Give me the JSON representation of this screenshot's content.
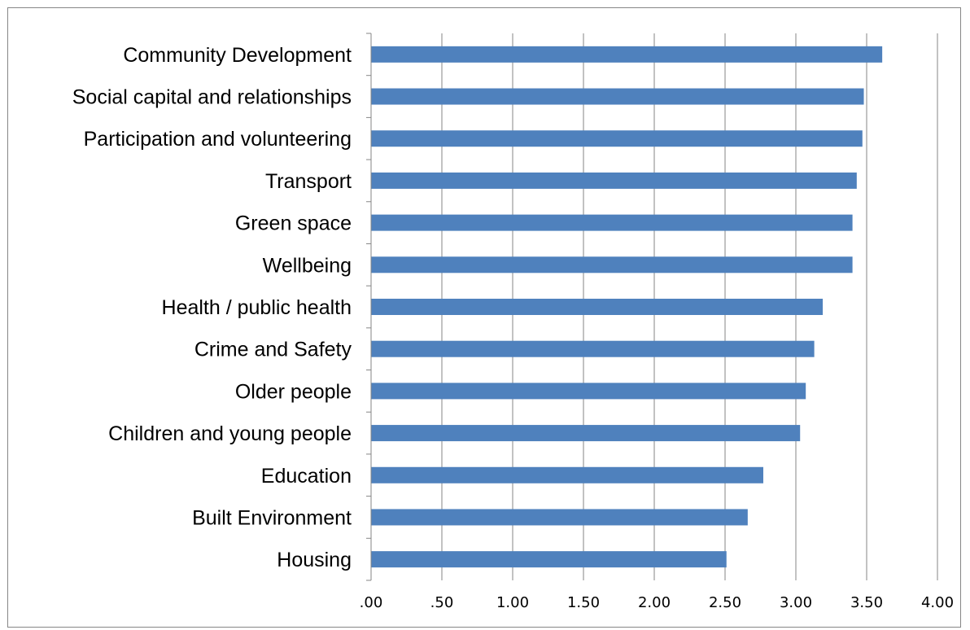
{
  "chart_data": {
    "type": "bar",
    "orientation": "horizontal",
    "categories": [
      "Community Development",
      "Social capital and relationships",
      "Participation and volunteering",
      "Transport",
      "Green space",
      "Wellbeing",
      "Health / public health",
      "Crime and Safety",
      "Older people",
      "Children and young people",
      "Education",
      "Built Environment",
      "Housing"
    ],
    "values": [
      3.61,
      3.48,
      3.47,
      3.43,
      3.4,
      3.4,
      3.19,
      3.13,
      3.07,
      3.03,
      2.77,
      2.66,
      2.51
    ],
    "xlim": [
      0,
      4
    ],
    "x_ticks": [
      0,
      0.5,
      1,
      1.5,
      2,
      2.5,
      3,
      3.5,
      4
    ],
    "x_tick_labels": [
      ".00",
      ".50",
      "1.00",
      "1.50",
      "2.00",
      "2.50",
      "3.00",
      "3.50",
      "4.00"
    ],
    "title": "",
    "xlabel": "",
    "ylabel": "",
    "grid": "vertical major gridlines",
    "legend": "none",
    "bar_color": "#4F81BD",
    "gridline_color": "#868686"
  }
}
